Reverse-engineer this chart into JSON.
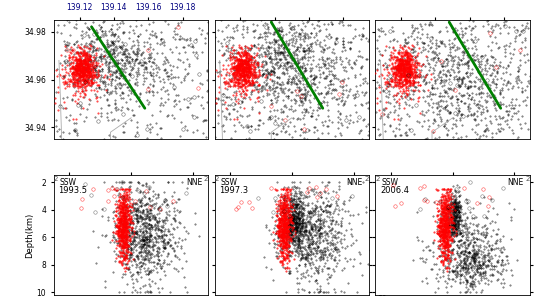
{
  "map_xlim": [
    139.105,
    139.195
  ],
  "map_ylim": [
    34.935,
    34.985
  ],
  "map_xticks": [
    139.12,
    139.14,
    139.16,
    139.18
  ],
  "map_yticks": [
    34.94,
    34.96,
    34.98
  ],
  "cross_xlim": [
    -2.5,
    2.5
  ],
  "cross_ylim_min": 1.5,
  "cross_ylim_max": 10.2,
  "cross_yticks": [
    2,
    4,
    6,
    8,
    10
  ],
  "years": [
    "1993.5",
    "1997.3",
    "2006.4"
  ],
  "green_line_panels": [
    {
      "x": [
        139.127,
        139.158
      ],
      "y": [
        34.982,
        34.948
      ]
    },
    {
      "x": [
        139.138,
        139.168
      ],
      "y": [
        34.984,
        34.948
      ]
    },
    {
      "x": [
        139.148,
        139.178
      ],
      "y": [
        34.984,
        34.948
      ]
    }
  ],
  "depth_ylabel": "Depth(km)",
  "coast_color": "#aaaaaa",
  "seed": 42
}
